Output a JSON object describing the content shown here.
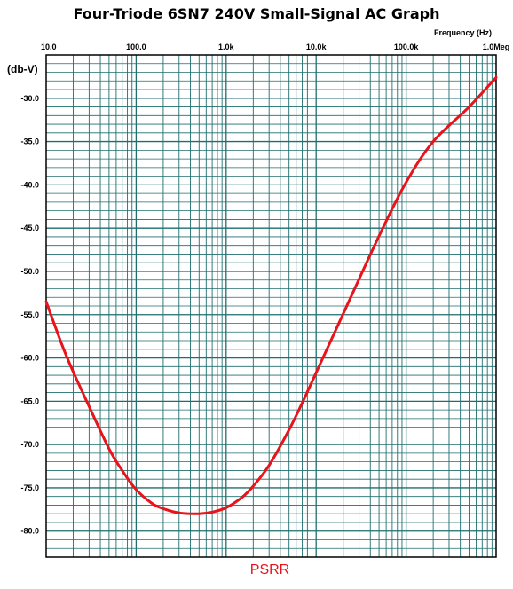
{
  "chart_data": {
    "type": "line",
    "title": "Four-Triode 6SN7 240V Small-Signal AC Graph",
    "xlabel": "Frequency   (Hz)",
    "ylabel": "(db-V)",
    "xscale": "log",
    "xlim": [
      10,
      1000000
    ],
    "ylim": [
      -83,
      -25
    ],
    "x_tick_labels": [
      "10.0",
      "100.0",
      "1.0k",
      "10.0k",
      "100.0k",
      "1.0Meg"
    ],
    "y_tick_labels": [
      "-30.0",
      "-35.0",
      "-40.0",
      "-45.0",
      "-50.0",
      "-55.0",
      "-60.0",
      "-65.0",
      "-70.0",
      "-75.0",
      "-80.0"
    ],
    "grid": true,
    "legend_position": "bottom-center",
    "series": [
      {
        "name": "PSRR",
        "color": "#e8141b",
        "x": [
          10,
          15,
          20,
          30,
          50,
          70,
          100,
          150,
          200,
          300,
          500,
          700,
          1000,
          1500,
          2000,
          3000,
          5000,
          7000,
          10000,
          20000,
          50000,
          100000,
          200000,
          500000,
          1000000
        ],
        "y": [
          -53.5,
          -58.5,
          -61.6,
          -65.6,
          -70.5,
          -73.0,
          -75.2,
          -76.8,
          -77.4,
          -77.9,
          -78.0,
          -77.8,
          -77.3,
          -76.1,
          -74.8,
          -72.4,
          -68.3,
          -65.2,
          -61.7,
          -54.9,
          -45.9,
          -39.7,
          -35.0,
          -31.0,
          -27.6
        ]
      }
    ]
  },
  "colors": {
    "grid": "#1f6e6e",
    "series": "#e8141b",
    "background": "#ffffff"
  }
}
